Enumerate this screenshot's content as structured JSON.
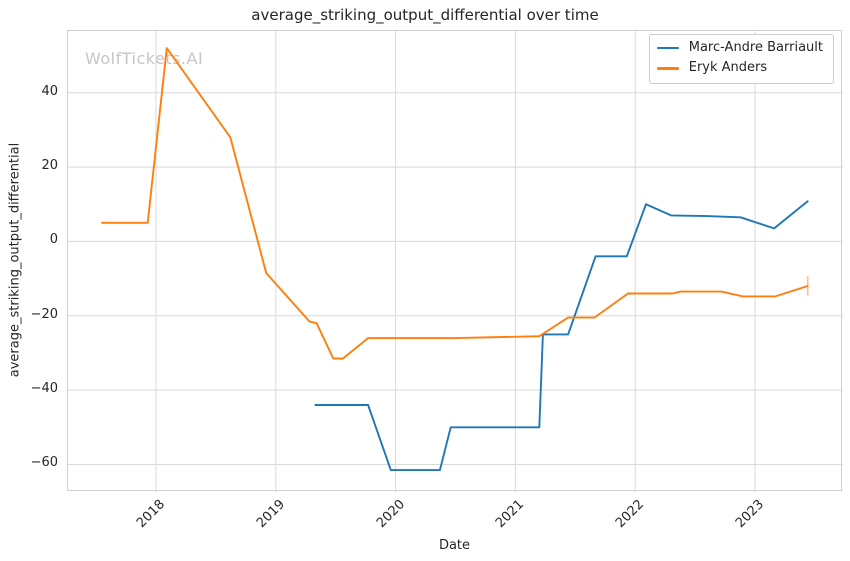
{
  "watermark": "WolfTickets.AI",
  "style": {
    "grid_color": "#d9d9d9",
    "spine_color": "#cfcfcf",
    "text_color": "#262626",
    "watermark_color": "#c6c6c6",
    "background": "#ffffff"
  },
  "chart_data": {
    "type": "line",
    "title": "average_striking_output_differential over time",
    "xlabel": "Date",
    "ylabel": "average_striking_output_differential",
    "xlim": [
      2017.265,
      2023.735
    ],
    "ylim": [
      -67.4,
      56.6
    ],
    "grid": true,
    "legend_position": "upper-right",
    "xticks": [
      {
        "value": 2018,
        "label": "2018"
      },
      {
        "value": 2019,
        "label": "2019"
      },
      {
        "value": 2020,
        "label": "2020"
      },
      {
        "value": 2021,
        "label": "2021"
      },
      {
        "value": 2022,
        "label": "2022"
      },
      {
        "value": 2023,
        "label": "2023"
      }
    ],
    "yticks": [
      {
        "value": 40,
        "label": "40"
      },
      {
        "value": 20,
        "label": "20"
      },
      {
        "value": 0,
        "label": "0"
      },
      {
        "value": -20,
        "label": "−20"
      },
      {
        "value": -40,
        "label": "−40"
      },
      {
        "value": -60,
        "label": "−60"
      }
    ],
    "series": [
      {
        "name": "Marc-Andre Barriault",
        "color": "#1f77b4",
        "points": [
          [
            2019.33,
            -44
          ],
          [
            2019.77,
            -44
          ],
          [
            2019.96,
            -61.5
          ],
          [
            2020.37,
            -61.5
          ],
          [
            2020.46,
            -50
          ],
          [
            2021.2,
            -50
          ],
          [
            2021.23,
            -25
          ],
          [
            2021.44,
            -25
          ],
          [
            2021.67,
            -4
          ],
          [
            2021.93,
            -4
          ],
          [
            2022.09,
            10
          ],
          [
            2022.3,
            7
          ],
          [
            2022.6,
            6.8
          ],
          [
            2022.88,
            6.5
          ],
          [
            2023.16,
            3.5
          ],
          [
            2023.44,
            10.8
          ]
        ]
      },
      {
        "name": "Eryk Anders",
        "color": "#ff7f0e",
        "points": [
          [
            2017.55,
            5
          ],
          [
            2017.93,
            5
          ],
          [
            2018.09,
            52
          ],
          [
            2018.62,
            28
          ],
          [
            2018.92,
            -8.5
          ],
          [
            2019.28,
            -21.5
          ],
          [
            2019.34,
            -22
          ],
          [
            2019.48,
            -31.5
          ],
          [
            2019.56,
            -31.5
          ],
          [
            2019.77,
            -26
          ],
          [
            2020.5,
            -26
          ],
          [
            2021.2,
            -25.5
          ],
          [
            2021.44,
            -20.5
          ],
          [
            2021.66,
            -20.5
          ],
          [
            2021.94,
            -14
          ],
          [
            2022.31,
            -14
          ],
          [
            2022.38,
            -13.5
          ],
          [
            2022.72,
            -13.5
          ],
          [
            2022.9,
            -14.8
          ],
          [
            2023.17,
            -14.8
          ],
          [
            2023.44,
            -12
          ]
        ],
        "error_bar": {
          "x": 2023.44,
          "y_low": -14.5,
          "y_high": -9.3
        }
      }
    ]
  }
}
